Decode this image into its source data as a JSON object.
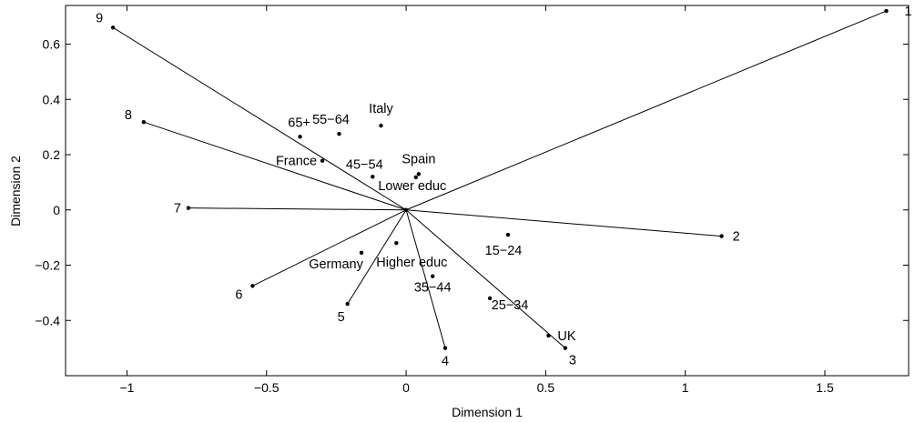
{
  "chart_data": {
    "type": "scatter",
    "title": "",
    "xlabel": "Dimension 1",
    "ylabel": "Dimension 2",
    "xlim": [
      -1.22,
      1.8
    ],
    "ylim": [
      -0.6,
      0.74
    ],
    "xticks": [
      -1,
      -0.5,
      0,
      0.5,
      1,
      1.5
    ],
    "xtick_labels": [
      "−1",
      "−0.5",
      "0",
      "0.5",
      "1",
      "1.5"
    ],
    "yticks": [
      -0.4,
      -0.2,
      0,
      0.2,
      0.4,
      0.6
    ],
    "ytick_labels": [
      "−0.4",
      "−0.2",
      "0",
      "0.2",
      "0.4",
      "0.6"
    ],
    "grid": false,
    "biplot_vectors": [
      {
        "label": "1",
        "x": 1.72,
        "y": 0.72
      },
      {
        "label": "2",
        "x": 1.13,
        "y": -0.095
      },
      {
        "label": "3",
        "x": 0.57,
        "y": -0.5
      },
      {
        "label": "4",
        "x": 0.14,
        "y": -0.5
      },
      {
        "label": "5",
        "x": -0.21,
        "y": -0.34
      },
      {
        "label": "6",
        "x": -0.55,
        "y": -0.275
      },
      {
        "label": "7",
        "x": -0.78,
        "y": 0.007
      },
      {
        "label": "8",
        "x": -0.94,
        "y": 0.318
      },
      {
        "label": "9",
        "x": -1.05,
        "y": 0.66
      }
    ],
    "points": [
      {
        "label": "65+",
        "x": -0.38,
        "y": 0.265
      },
      {
        "label": "55−64",
        "x": -0.24,
        "y": 0.275
      },
      {
        "label": "Italy",
        "x": -0.09,
        "y": 0.305
      },
      {
        "label": "France",
        "x": -0.3,
        "y": 0.178
      },
      {
        "label": "45−54",
        "x": -0.12,
        "y": 0.12
      },
      {
        "label": "Spain",
        "x": 0.045,
        "y": 0.13
      },
      {
        "label": "Lower educ",
        "x": 0.035,
        "y": 0.118
      },
      {
        "label": "Germany",
        "x": -0.16,
        "y": -0.155
      },
      {
        "label": "Higher educ",
        "x": -0.035,
        "y": -0.12
      },
      {
        "label": "15−24",
        "x": 0.365,
        "y": -0.09
      },
      {
        "label": "35−44",
        "x": 0.095,
        "y": -0.24
      },
      {
        "label": "25−34",
        "x": 0.3,
        "y": -0.32
      },
      {
        "label": "UK",
        "x": 0.51,
        "y": -0.455
      }
    ]
  }
}
